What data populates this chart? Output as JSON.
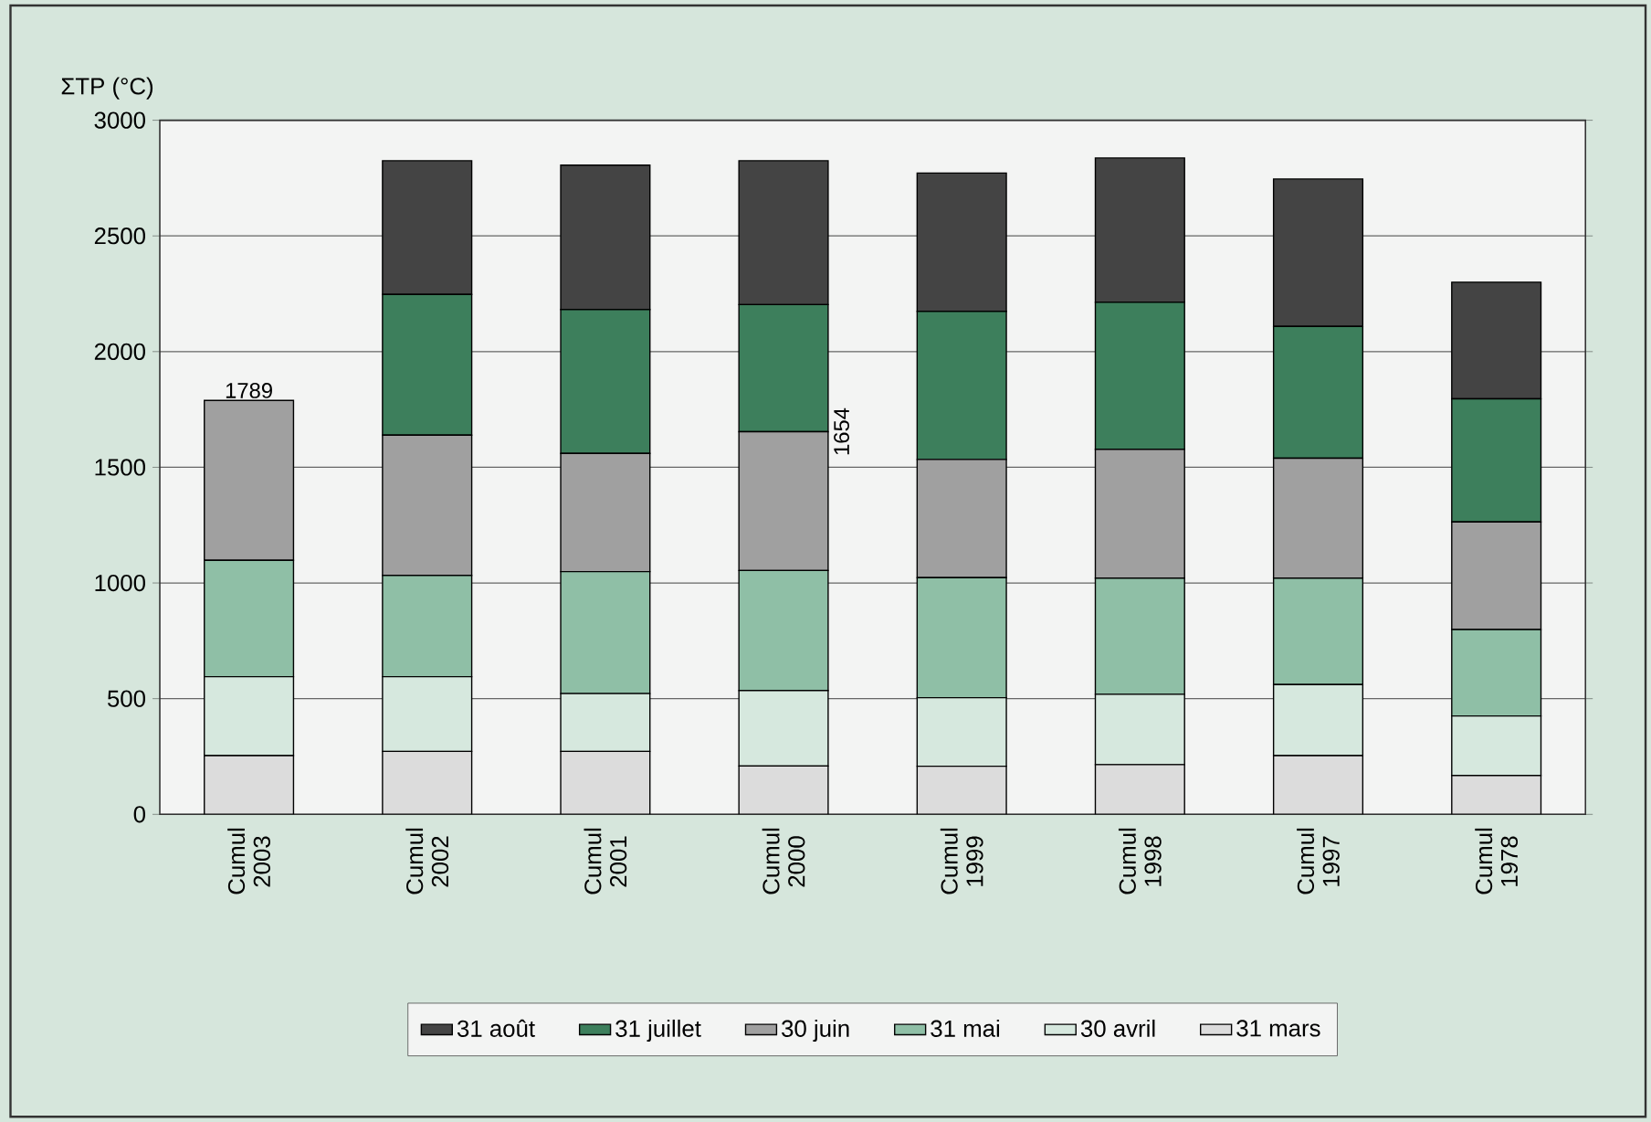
{
  "chart_data": {
    "type": "bar",
    "stacked": true,
    "ylabel": "ΣTP (°C)",
    "categories": [
      "Cumul 2003",
      "Cumul 2002",
      "Cumul 2001",
      "Cumul 2000",
      "Cumul 1999",
      "Cumul 1998",
      "Cumul 1997",
      "Cumul 1978"
    ],
    "series": [
      {
        "name": "31 mars",
        "color": "#dcdcdc",
        "values": [
          254,
          272,
          272,
          209,
          208,
          215,
          254,
          168
        ]
      },
      {
        "name": "30 avril",
        "color": "#d6e8de",
        "values": [
          341,
          323,
          250,
          326,
          296,
          304,
          307,
          257
        ]
      },
      {
        "name": "31 mai",
        "color": "#8fbfa6",
        "values": [
          503,
          438,
          527,
          519,
          519,
          502,
          460,
          374
        ]
      },
      {
        "name": "30 juin",
        "color": "#a0a0a0",
        "values": [
          691,
          606,
          511,
          600,
          511,
          557,
          518,
          465
        ]
      },
      {
        "name": "31 juillet",
        "color": "#3d7f5c",
        "values": [
          0,
          608,
          622,
          549,
          640,
          635,
          570,
          532
        ]
      },
      {
        "name": "31 août",
        "color": "#444444",
        "values": [
          0,
          578,
          624,
          622,
          598,
          624,
          637,
          504
        ]
      }
    ],
    "ylim": [
      0,
      3000
    ],
    "yticks": [
      0,
      500,
      1000,
      1500,
      2000,
      2500,
      3000
    ],
    "grid": "y",
    "legend": "bottom",
    "annotations": [
      {
        "text": "1789",
        "x": "Cumul 2003",
        "y": 1789
      },
      {
        "text": "1654",
        "x": "Cumul 2000",
        "y": 1654
      }
    ]
  }
}
